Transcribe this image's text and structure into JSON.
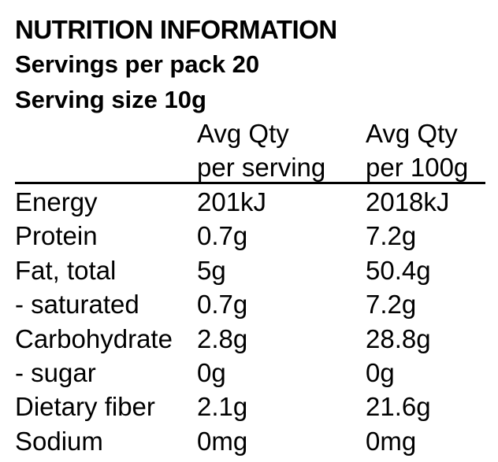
{
  "panel": {
    "title": "NUTRITION INFORMATION",
    "servings_per_pack": "Servings per pack 20",
    "serving_size": "Serving size 10g"
  },
  "columns": {
    "per_serving": [
      "Avg Qty",
      "per serving"
    ],
    "per_100g": [
      "Avg Qty",
      "per 100g"
    ]
  },
  "rows": [
    {
      "name": "Energy",
      "per_serving": "201kJ",
      "per_100g": "2018kJ"
    },
    {
      "name": "Protein",
      "per_serving": "0.7g",
      "per_100g": "7.2g"
    },
    {
      "name": "Fat, total",
      "per_serving": "5g",
      "per_100g": "50.4g"
    },
    {
      "name": "- saturated",
      "per_serving": "0.7g",
      "per_100g": "7.2g"
    },
    {
      "name": "Carbohydrate",
      "per_serving": "2.8g",
      "per_100g": "28.8g"
    },
    {
      "name": "- sugar",
      "per_serving": "0g",
      "per_100g": "0g"
    },
    {
      "name": "Dietary fiber",
      "per_serving": "2.1g",
      "per_100g": "21.6g"
    },
    {
      "name": "Sodium",
      "per_serving": "0mg",
      "per_100g": "0mg"
    }
  ]
}
